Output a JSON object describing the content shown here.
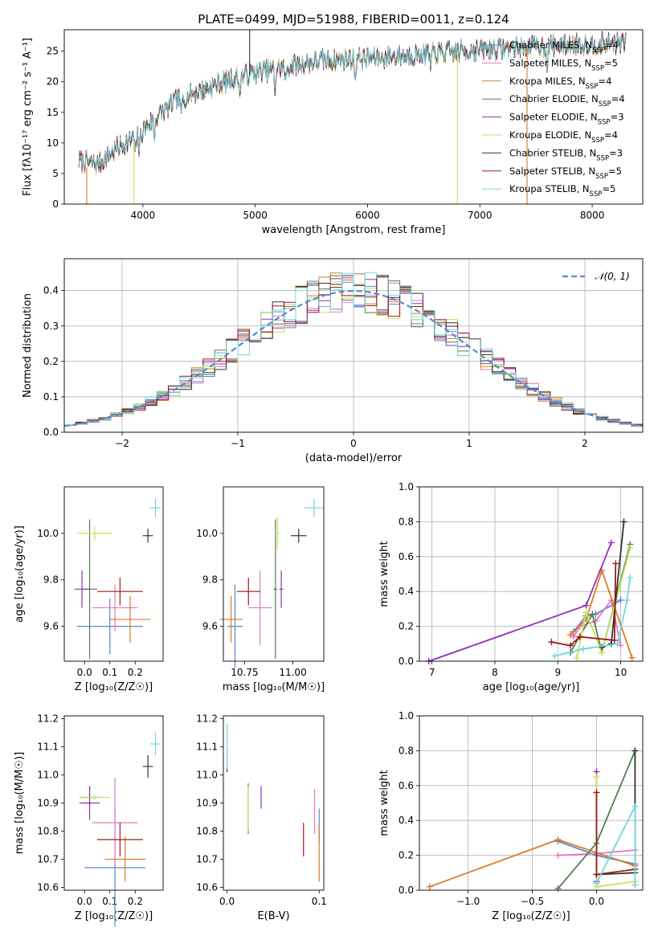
{
  "title": "PLATE=0499, MJD=51988, FIBERID=0011, z=0.124",
  "colors": {
    "chabrier_miles": "#5b87c8",
    "salpeter_miles": "#e377c2",
    "kroupa_miles": "#d97b2a",
    "chabrier_elodie": "#4f7f52",
    "salpeter_elodie": "#8e33b5",
    "kroupa_elodie": "#c8e25a",
    "chabrier_stelib": "#333333",
    "salpeter_stelib": "#9b1a1a",
    "kroupa_stelib": "#70d6e0"
  },
  "chart_data": [
    {
      "type": "line",
      "id": "spectrum",
      "xlabel": "wavelength [Angstrom, rest frame]",
      "ylabel": "Flux [fλ10⁻¹⁷ erg cm⁻² s⁻¹ A⁻¹]",
      "xlim": [
        3300,
        8450
      ],
      "ylim": [
        0,
        28.5
      ],
      "xticks": [
        4000,
        5000,
        6000,
        7000,
        8000
      ],
      "yticks": [
        0,
        5,
        10,
        15,
        20,
        25
      ],
      "wavelength_range": [
        3430,
        8300
      ],
      "continuum": {
        "x": [
          3430,
          3600,
          3800,
          3950,
          4100,
          4300,
          4500,
          4800,
          5000,
          5300,
          5600,
          6000,
          6500,
          7000,
          7500,
          8000,
          8300
        ],
        "y": [
          7,
          6.5,
          9.5,
          11,
          14,
          17,
          18.5,
          20.5,
          21.5,
          22.5,
          23.5,
          23.8,
          24.5,
          25.2,
          25.8,
          26.2,
          26.3
        ]
      },
      "legend": [
        "Chabrier MILES, N_SSP=4",
        "Salpeter MILES, N_SSP=5",
        "Kroupa MILES, N_SSP=4",
        "Chabrier ELODIE, N_SSP=4",
        "Salpeter ELODIE, N_SSP=3",
        "Kroupa ELODIE, N_SSP=4",
        "Chabrier STELIB, N_SSP=3",
        "Salpeter STELIB, N_SSP=5",
        "Kroupa STELIB, N_SSP=5"
      ],
      "legend_placement": "upper right"
    },
    {
      "type": "histogram",
      "id": "residuals",
      "xlabel": "(data-model)/error",
      "ylabel": "Normed distribution",
      "xlim": [
        -2.5,
        2.5
      ],
      "ylim": [
        0,
        0.49
      ],
      "xticks": [
        -2,
        -1,
        0,
        1,
        2
      ],
      "yticks": [
        0.0,
        0.1,
        0.2,
        0.3,
        0.4
      ],
      "grid": true,
      "bin_width": 0.1,
      "reference_curve": "N(0,1)",
      "legend": [
        "N(0,1)"
      ]
    },
    {
      "type": "errorbar",
      "id": "age_vs_Z",
      "xlabel": "Z [log₁₀(Z/Z☉)]",
      "ylabel": "age  [log₁₀(age/yr)]",
      "xlim": [
        -0.08,
        0.31
      ],
      "ylim": [
        9.45,
        10.2
      ],
      "xticks": [
        0.0,
        0.1,
        0.2
      ],
      "yticks": [
        9.6,
        9.8,
        10.0
      ],
      "points": [
        {
          "model": "Chabrier MILES",
          "x": 0.1,
          "xerr": 0.13,
          "y": 9.6,
          "yerr": 0.12
        },
        {
          "model": "Salpeter MILES",
          "x": 0.12,
          "xerr": 0.09,
          "y": 9.68,
          "yerr": 0.1
        },
        {
          "model": "Kroupa MILES",
          "x": 0.18,
          "xerr": 0.08,
          "y": 9.63,
          "yerr": 0.1
        },
        {
          "model": "Chabrier ELODIE",
          "x": 0.02,
          "xerr": 0.03,
          "y": 9.76,
          "yerr": 0.3
        },
        {
          "model": "Salpeter ELODIE",
          "x": -0.01,
          "xerr": 0.03,
          "y": 9.76,
          "yerr": 0.08
        },
        {
          "model": "Kroupa ELODIE",
          "x": 0.04,
          "xerr": 0.07,
          "y": 10.0,
          "yerr": 0.03
        },
        {
          "model": "Chabrier STELIB",
          "x": 0.25,
          "xerr": 0.02,
          "y": 9.99,
          "yerr": 0.03
        },
        {
          "model": "Salpeter STELIB",
          "x": 0.14,
          "xerr": 0.09,
          "y": 9.75,
          "yerr": 0.06
        },
        {
          "model": "Kroupa STELIB",
          "x": 0.28,
          "xerr": 0.02,
          "y": 10.11,
          "yerr": 0.04
        }
      ]
    },
    {
      "type": "errorbar",
      "id": "age_vs_mass",
      "xlabel": "mass [log₁₀(M/M☉)]",
      "ylabel": "",
      "xlim": [
        10.64,
        11.16
      ],
      "ylim": [
        9.45,
        10.2
      ],
      "xticks": [
        10.75,
        11.0
      ],
      "yticks": [
        9.6,
        9.8,
        10.0
      ],
      "points": [
        {
          "model": "Chabrier MILES",
          "x": 10.7,
          "xerr": 0.04,
          "y": 9.6,
          "yerr": 0.18
        },
        {
          "model": "Salpeter MILES",
          "x": 10.83,
          "xerr": 0.06,
          "y": 9.68,
          "yerr": 0.16
        },
        {
          "model": "Kroupa MILES",
          "x": 10.68,
          "xerr": 0.06,
          "y": 9.63,
          "yerr": 0.1
        },
        {
          "model": "Chabrier ELODIE",
          "x": 10.91,
          "xerr": 0.01,
          "y": 9.76,
          "yerr": 0.3
        },
        {
          "model": "Salpeter ELODIE",
          "x": 10.94,
          "xerr": 0.01,
          "y": 9.76,
          "yerr": 0.08
        },
        {
          "model": "Kroupa ELODIE",
          "x": 10.92,
          "xerr": 0.01,
          "y": 10.0,
          "yerr": 0.07
        },
        {
          "model": "Chabrier STELIB",
          "x": 11.03,
          "xerr": 0.04,
          "y": 9.99,
          "yerr": 0.03
        },
        {
          "model": "Salpeter STELIB",
          "x": 10.77,
          "xerr": 0.06,
          "y": 9.75,
          "yerr": 0.06
        },
        {
          "model": "Kroupa STELIB",
          "x": 11.11,
          "xerr": 0.05,
          "y": 10.11,
          "yerr": 0.04
        }
      ]
    },
    {
      "type": "line",
      "id": "weight_vs_age",
      "xlabel": "age  [log₁₀(age/yr)]",
      "ylabel": "mass weight",
      "xlim": [
        6.8,
        10.35
      ],
      "ylim": [
        0,
        1.0
      ],
      "xticks": [
        7,
        8,
        9,
        10
      ],
      "yticks": [
        0.0,
        0.2,
        0.4,
        0.6,
        0.8,
        1.0
      ],
      "grid": true,
      "series": [
        {
          "model": "Chabrier MILES",
          "x": [
            9.25,
            9.45,
            9.6,
            10.0
          ],
          "y": [
            0.17,
            0.26,
            0.27,
            0.35
          ]
        },
        {
          "model": "Salpeter MILES",
          "x": [
            9.25,
            9.35,
            9.6,
            9.85,
            10.0
          ],
          "y": [
            0.14,
            0.2,
            0.23,
            0.35,
            0.09
          ]
        },
        {
          "model": "Kroupa MILES",
          "x": [
            9.2,
            9.45,
            9.7,
            10.18
          ],
          "y": [
            0.15,
            0.24,
            0.52,
            0.02
          ]
        },
        {
          "model": "Chabrier ELODIE",
          "x": [
            9.2,
            9.55,
            9.7,
            10.15
          ],
          "y": [
            0.05,
            0.27,
            0.05,
            0.67
          ]
        },
        {
          "model": "Salpeter ELODIE",
          "x": [
            6.95,
            9.45,
            9.85
          ],
          "y": [
            0.0,
            0.32,
            0.68
          ]
        },
        {
          "model": "Kroupa ELODIE",
          "x": [
            9.3,
            9.45,
            9.7,
            10.15
          ],
          "y": [
            0.02,
            0.28,
            0.05,
            0.65
          ]
        },
        {
          "model": "Chabrier STELIB",
          "x": [
            9.7,
            9.85,
            10.05
          ],
          "y": [
            0.08,
            0.1,
            0.8
          ]
        },
        {
          "model": "Salpeter STELIB",
          "x": [
            8.9,
            9.2,
            9.35,
            9.9,
            9.92
          ],
          "y": [
            0.11,
            0.09,
            0.14,
            0.12,
            0.56
          ]
        },
        {
          "model": "Kroupa STELIB",
          "x": [
            8.95,
            9.4,
            9.95,
            10.1,
            10.15
          ],
          "y": [
            0.03,
            0.07,
            0.1,
            0.35,
            0.48
          ]
        }
      ]
    },
    {
      "type": "errorbar",
      "id": "mass_vs_Z",
      "xlabel": "Z [log₁₀(Z/Z☉)]",
      "ylabel": "mass [log₁₀(M/M☉)]",
      "xlim": [
        -0.08,
        0.31
      ],
      "ylim": [
        10.59,
        11.21
      ],
      "xticks": [
        0.0,
        0.1,
        0.2
      ],
      "yticks": [
        10.6,
        10.7,
        10.8,
        10.9,
        11.0,
        11.1,
        11.2
      ],
      "points": [
        {
          "model": "Chabrier MILES",
          "x": 0.12,
          "xerr": 0.12,
          "y": 10.67,
          "yerr": 0.21
        },
        {
          "model": "Salpeter MILES",
          "x": 0.12,
          "xerr": 0.09,
          "y": 10.83,
          "yerr": 0.16
        },
        {
          "model": "Kroupa MILES",
          "x": 0.16,
          "xerr": 0.08,
          "y": 10.7,
          "yerr": 0.08
        },
        {
          "model": "Chabrier ELODIE",
          "x": 0.02,
          "xerr": 0.04,
          "y": 10.92,
          "yerr": 0.04
        },
        {
          "model": "Salpeter ELODIE",
          "x": 0.02,
          "xerr": 0.04,
          "y": 10.9,
          "yerr": 0.06
        },
        {
          "model": "Kroupa ELODIE",
          "x": 0.04,
          "xerr": 0.06,
          "y": 10.92,
          "yerr": 0.01
        },
        {
          "model": "Chabrier STELIB",
          "x": 0.25,
          "xerr": 0.02,
          "y": 11.03,
          "yerr": 0.04
        },
        {
          "model": "Salpeter STELIB",
          "x": 0.14,
          "xerr": 0.09,
          "y": 10.77,
          "yerr": 0.06
        },
        {
          "model": "Kroupa STELIB",
          "x": 0.28,
          "xerr": 0.02,
          "y": 11.11,
          "yerr": 0.04
        }
      ]
    },
    {
      "type": "errorbar",
      "id": "mass_vs_EBV",
      "xlabel": "E(B-V)",
      "ylabel": "",
      "xlim": [
        -0.004,
        0.105
      ],
      "ylim": [
        10.59,
        11.21
      ],
      "xticks": [
        0.0,
        0.1
      ],
      "yticks": [
        10.6,
        10.7,
        10.8,
        10.9,
        11.0,
        11.1,
        11.2
      ],
      "points": [
        {
          "model": "Chabrier MILES",
          "x": 0.1,
          "y": 10.82,
          "yerr": 0.06
        },
        {
          "model": "Salpeter MILES",
          "x": 0.095,
          "y": 10.87,
          "yerr": 0.08
        },
        {
          "model": "Kroupa MILES",
          "x": 0.1,
          "y": 10.72,
          "yerr": 0.1
        },
        {
          "model": "Chabrier ELODIE",
          "x": 0.023,
          "y": 10.88,
          "yerr": 0.09
        },
        {
          "model": "Salpeter ELODIE",
          "x": 0.037,
          "y": 10.92,
          "yerr": 0.04
        },
        {
          "model": "Kroupa ELODIE",
          "x": 0.023,
          "y": 10.88,
          "yerr": 0.08
        },
        {
          "model": "Chabrier STELIB",
          "x": 0.0,
          "y": 11.05,
          "yerr": 0.04
        },
        {
          "model": "Salpeter STELIB",
          "x": 0.083,
          "y": 10.77,
          "yerr": 0.06
        },
        {
          "model": "Kroupa STELIB",
          "x": 0.0,
          "y": 11.1,
          "yerr": 0.08
        }
      ]
    },
    {
      "type": "line",
      "id": "weight_vs_Z",
      "xlabel": "Z [log₁₀(Z/Z☉)]",
      "ylabel": "mass weight",
      "xlim": [
        -1.38,
        0.36
      ],
      "ylim": [
        0,
        1.0
      ],
      "xticks": [
        -1.0,
        -0.5,
        0.0
      ],
      "yticks": [
        0.0,
        0.2,
        0.4,
        0.6,
        0.8,
        1.0
      ],
      "grid": true,
      "series": [
        {
          "model": "Chabrier MILES",
          "x": [
            -0.3,
            0.0,
            0.3
          ],
          "y": [
            0.28,
            0.2,
            0.15
          ]
        },
        {
          "model": "Salpeter MILES",
          "x": [
            -0.3,
            0.0,
            0.3
          ],
          "y": [
            0.2,
            0.21,
            0.23
          ]
        },
        {
          "model": "Kroupa MILES",
          "x": [
            -1.3,
            -0.3,
            0.3
          ],
          "y": [
            0.02,
            0.29,
            0.14
          ]
        },
        {
          "model": "Chabrier ELODIE",
          "x": [
            -0.3,
            0.0,
            0.3
          ],
          "y": [
            0.01,
            0.27,
            0.8
          ]
        },
        {
          "model": "Salpeter ELODIE",
          "x": [
            0.0,
            0.0
          ],
          "y": [
            0.68,
            0.05
          ]
        },
        {
          "model": "Kroupa ELODIE",
          "x": [
            0.0,
            0.0,
            0.3
          ],
          "y": [
            0.65,
            0.02,
            0.05
          ]
        },
        {
          "model": "Chabrier STELIB",
          "x": [
            0.0,
            0.3,
            0.3
          ],
          "y": [
            0.09,
            0.1,
            0.8
          ]
        },
        {
          "model": "Salpeter STELIB",
          "x": [
            0.0,
            0.0,
            0.3
          ],
          "y": [
            0.56,
            0.09,
            0.12
          ]
        },
        {
          "model": "Kroupa STELIB",
          "x": [
            0.0,
            0.3,
            0.3
          ],
          "y": [
            0.04,
            0.48,
            0.03
          ]
        }
      ]
    }
  ]
}
